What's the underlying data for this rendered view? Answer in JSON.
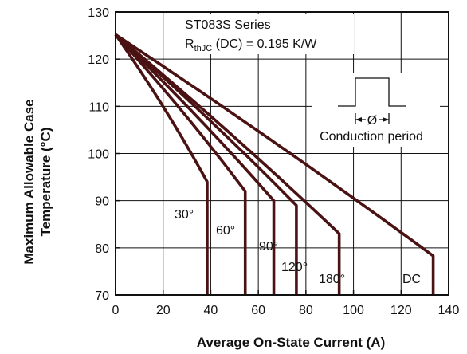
{
  "chart_data": {
    "type": "line",
    "xlabel": "Average On-State Current (A)",
    "ylabel_line1": "Maximum Allowable Case",
    "ylabel_line2": "Temperature (°C)",
    "xlim": [
      0,
      140
    ],
    "ylim": [
      70,
      130
    ],
    "xticks": [
      "0",
      "20",
      "40",
      "60",
      "80",
      "100",
      "120",
      "140"
    ],
    "yticks": [
      "70",
      "80",
      "90",
      "100",
      "110",
      "120",
      "130"
    ],
    "grid": true,
    "annotation": {
      "series_text": "ST083S Series",
      "rth_prefix": "R",
      "rth_sub": "thJC",
      "rth_suffix": " (DC) = 0.195 K/W",
      "conduction_symbol": "Ø",
      "conduction_label": "Conduction period"
    },
    "series": [
      {
        "name": "30°",
        "x": [
          0,
          38.5,
          38.5
        ],
        "y": [
          125.2,
          94,
          70
        ]
      },
      {
        "name": "60°",
        "x": [
          0,
          54.5,
          54.5
        ],
        "y": [
          125.2,
          92,
          70
        ]
      },
      {
        "name": "90°",
        "x": [
          0,
          66.5,
          66.5
        ],
        "y": [
          125.2,
          90,
          70
        ]
      },
      {
        "name": "120°",
        "x": [
          0,
          76.0,
          76.0
        ],
        "y": [
          125.2,
          89,
          70
        ]
      },
      {
        "name": "180°",
        "x": [
          0,
          94.0,
          94.0
        ],
        "y": [
          125.2,
          83,
          70
        ]
      },
      {
        "name": "DC",
        "x": [
          0,
          133.5,
          133.5
        ],
        "y": [
          125.2,
          78.3,
          70
        ]
      }
    ]
  }
}
